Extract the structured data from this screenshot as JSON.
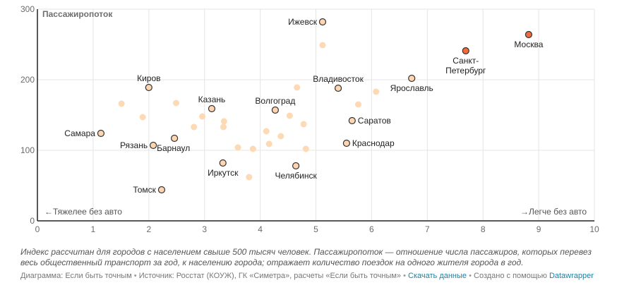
{
  "chart_data": {
    "type": "scatter",
    "title": "",
    "ylabel": "Пассажиропоток",
    "xlabel": "",
    "xlim": [
      0,
      10
    ],
    "ylim": [
      0,
      300
    ],
    "x_ticks": [
      0,
      1,
      2,
      3,
      4,
      5,
      6,
      7,
      8,
      9,
      10
    ],
    "y_ticks": [
      0,
      100,
      200,
      300
    ],
    "grid": true,
    "annotations": {
      "left": "←Тяжелее без авто",
      "right": "→Легче без авто"
    },
    "colors": {
      "highlight_top": "#f26b3a",
      "highlight": "#fdd5b1",
      "other": "#fdd9b5",
      "outline": "#333333",
      "grid": "#e5e5e5"
    },
    "series": [
      {
        "name": "top",
        "points": [
          {
            "label": "Москва",
            "x": 8.82,
            "y": 264,
            "label_pos": "below"
          },
          {
            "label": "Санкт-\nПетербург",
            "x": 7.69,
            "y": 241,
            "label_pos": "below"
          }
        ]
      },
      {
        "name": "labeled",
        "points": [
          {
            "label": "Ижевск",
            "x": 5.12,
            "y": 282,
            "label_pos": "left"
          },
          {
            "label": "Владивосток",
            "x": 5.4,
            "y": 188,
            "label_pos": "above"
          },
          {
            "label": "Ярославль",
            "x": 6.72,
            "y": 202,
            "label_pos": "below"
          },
          {
            "label": "Саратов",
            "x": 5.65,
            "y": 142,
            "label_pos": "right"
          },
          {
            "label": "Краснодар",
            "x": 5.55,
            "y": 110,
            "label_pos": "right"
          },
          {
            "label": "Челябинск",
            "x": 4.64,
            "y": 78,
            "label_pos": "below"
          },
          {
            "label": "Волгоград",
            "x": 4.27,
            "y": 157,
            "label_pos": "above"
          },
          {
            "label": "Иркутск",
            "x": 3.33,
            "y": 82,
            "label_pos": "below"
          },
          {
            "label": "Казань",
            "x": 3.13,
            "y": 159,
            "label_pos": "above"
          },
          {
            "label": "Киров",
            "x": 2.0,
            "y": 189,
            "label_pos": "above"
          },
          {
            "label": "Самара",
            "x": 1.14,
            "y": 124,
            "label_pos": "left"
          },
          {
            "label": "Рязань",
            "x": 2.08,
            "y": 107,
            "label_pos": "left"
          },
          {
            "label": "Барнаул",
            "x": 2.46,
            "y": 117,
            "label_pos": "below-right"
          },
          {
            "label": "Томск",
            "x": 2.23,
            "y": 44,
            "label_pos": "left"
          }
        ]
      },
      {
        "name": "other",
        "points": [
          {
            "x": 1.51,
            "y": 166
          },
          {
            "x": 1.89,
            "y": 147
          },
          {
            "x": 2.49,
            "y": 167
          },
          {
            "x": 2.96,
            "y": 148
          },
          {
            "x": 2.81,
            "y": 133
          },
          {
            "x": 3.35,
            "y": 141
          },
          {
            "x": 3.34,
            "y": 133
          },
          {
            "x": 3.6,
            "y": 104
          },
          {
            "x": 3.87,
            "y": 102
          },
          {
            "x": 3.8,
            "y": 62
          },
          {
            "x": 4.11,
            "y": 127
          },
          {
            "x": 4.16,
            "y": 109
          },
          {
            "x": 4.37,
            "y": 120
          },
          {
            "x": 4.53,
            "y": 149
          },
          {
            "x": 4.78,
            "y": 137
          },
          {
            "x": 4.82,
            "y": 102
          },
          {
            "x": 4.66,
            "y": 189
          },
          {
            "x": 5.12,
            "y": 249
          },
          {
            "x": 5.76,
            "y": 165
          },
          {
            "x": 6.08,
            "y": 183
          }
        ]
      }
    ]
  },
  "footer": {
    "notes": "Индекс рассчитан для городов с населением свыше 500 тысяч человек. Пассажиропоток — отношение числа пассажиров, которых перевез весь общественный транспорт за год, к населению города; отражает количество поездок на одного жителя города в год.",
    "byline_chart": "Диаграмма: Если быть точным",
    "separator": " • ",
    "byline_source": "Источник: Росстат (КОУЖ), ГК «Симетра», расчеты «Если быть точным»",
    "download_link": "Скачать данные",
    "created_with": "Создано с помощью",
    "datawrapper_link": "Datawrapper"
  }
}
